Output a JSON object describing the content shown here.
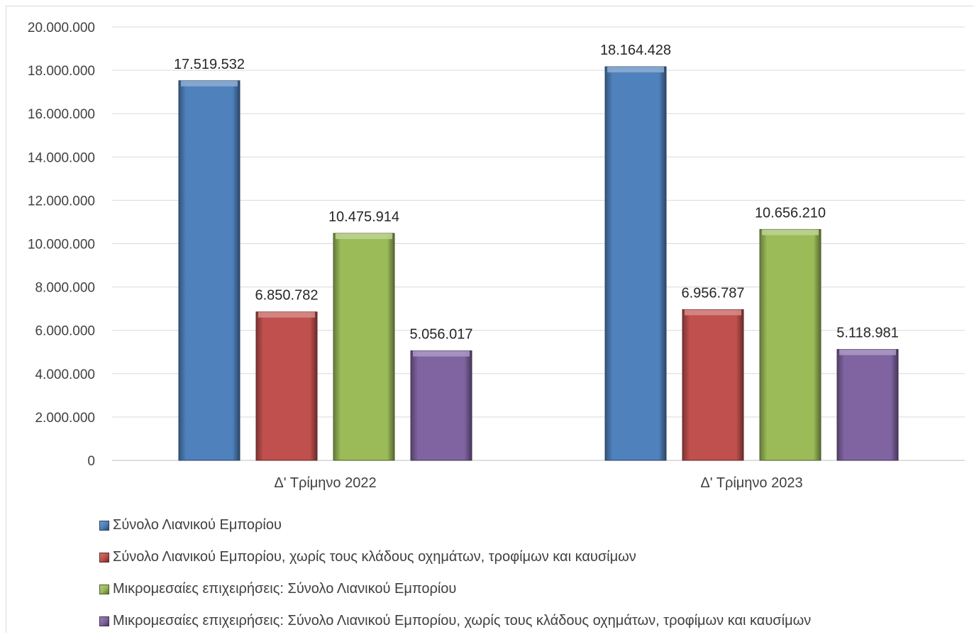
{
  "chart_data": {
    "type": "bar",
    "categories": [
      "Δ' Τρίμηνο 2022",
      "Δ' Τρίμηνο 2023"
    ],
    "series": [
      {
        "name": "Σύνολο Λιανικού Εμπορίου",
        "color": "#4f81bd",
        "values": [
          17519532,
          18164428
        ],
        "labels": [
          "17.519.532",
          "18.164.428"
        ]
      },
      {
        "name": "Σύνολο Λιανικού Εμπορίου, χωρίς τους κλάδους οχημάτων, τροφίμων και καυσίμων",
        "color": "#c0504d",
        "values": [
          6850782,
          6956787
        ],
        "labels": [
          "6.850.782",
          "6.956.787"
        ]
      },
      {
        "name": "Μικρομεσαίες επιχειρήσεις: Σύνολο Λιανικού Εμπορίου",
        "color": "#9bbb59",
        "values": [
          10475914,
          10656210
        ],
        "labels": [
          "10.475.914",
          "10.656.210"
        ]
      },
      {
        "name": "Μικρομεσαίες επιχειρήσεις: Σύνολο Λιανικού Εμπορίου, χωρίς τους κλάδους οχημάτων, τροφίμων και καυσίμων",
        "color": "#8064a2",
        "values": [
          5056017,
          5118981
        ],
        "labels": [
          "5.056.017",
          "5.118.981"
        ]
      }
    ],
    "ylim": [
      0,
      20000000
    ],
    "yticks": [
      0,
      2000000,
      4000000,
      6000000,
      8000000,
      10000000,
      12000000,
      14000000,
      16000000,
      18000000,
      20000000
    ],
    "ytick_labels": [
      "0",
      "2.000.000",
      "4.000.000",
      "6.000.000",
      "8.000.000",
      "10.000.000",
      "12.000.000",
      "14.000.000",
      "16.000.000",
      "18.000.000",
      "20.000.000"
    ],
    "grid": true,
    "legend_position": "bottom"
  }
}
